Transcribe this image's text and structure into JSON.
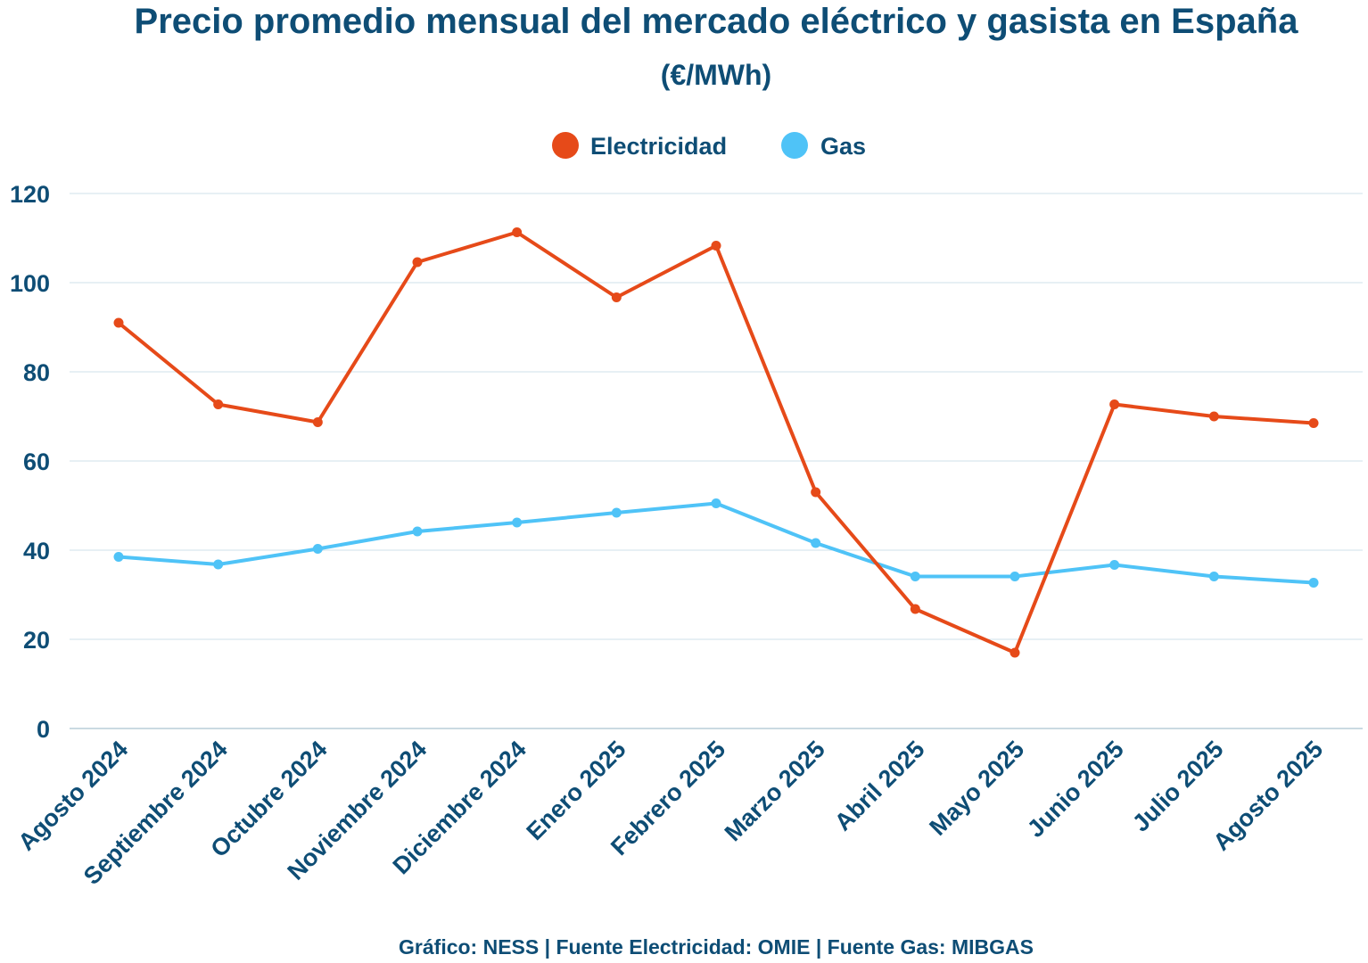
{
  "colors": {
    "text": "#0e4d75",
    "grid": "#cfe0e8",
    "electricidad": "#e64a19",
    "gas": "#4fc3f7"
  },
  "chart_data": {
    "type": "line",
    "title": "Precio promedio mensual del mercado eléctrico y gasista en España",
    "subtitle": "(€/MWh)",
    "source": "Gráfico: NESS | Fuente Electricidad: OMIE | Fuente Gas: MIBGAS",
    "legend_position": "top-center",
    "grid": true,
    "ylim": [
      0,
      120
    ],
    "yticks": [
      "0",
      "20",
      "40",
      "60",
      "80",
      "100",
      "120"
    ],
    "categories": [
      "Agosto 2024",
      "Septiembre 2024",
      "Octubre 2024",
      "Noviembre 2024",
      "Diciembre 2024",
      "Enero 2025",
      "Febrero 2025",
      "Marzo 2025",
      "Abril 2025",
      "Mayo 2025",
      "Junio 2025",
      "Julio 2025",
      "Agosto 2025"
    ],
    "series": [
      {
        "name": "Electricidad",
        "color": "#e64a19",
        "values": [
          91.0,
          72.7,
          68.7,
          104.6,
          111.3,
          96.7,
          108.3,
          53.0,
          26.8,
          17.0,
          72.7,
          70.0,
          68.5
        ]
      },
      {
        "name": "Gas",
        "color": "#4fc3f7",
        "values": [
          38.5,
          36.8,
          40.3,
          44.2,
          46.2,
          48.4,
          50.5,
          41.6,
          34.1,
          34.1,
          36.7,
          34.1,
          32.7
        ]
      }
    ]
  }
}
